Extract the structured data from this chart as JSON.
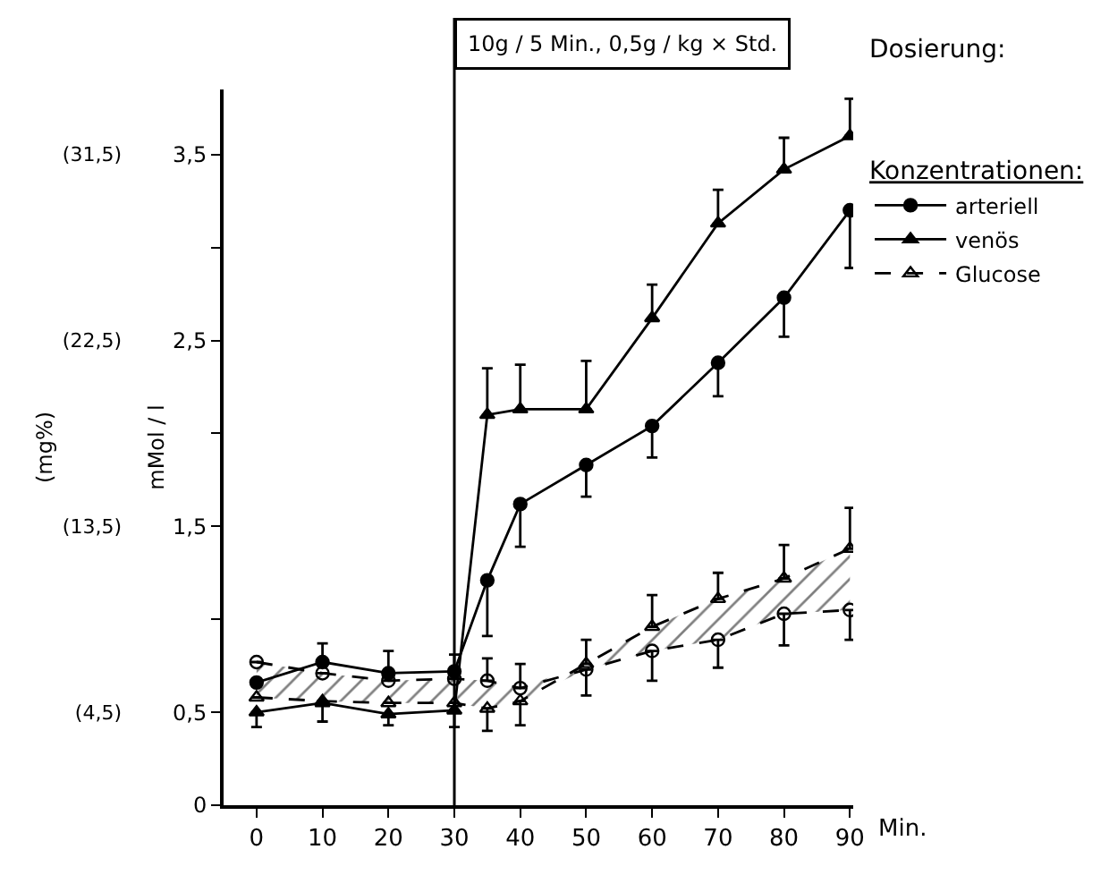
{
  "chart_data": {
    "type": "line",
    "ylabel": "mMol / l",
    "y2label": "(mg%)",
    "xlabel": "Min.",
    "legend_title": "Konzentrationen:",
    "legend": "right",
    "x": [
      0,
      10,
      20,
      30,
      35,
      40,
      50,
      60,
      70,
      80,
      90
    ],
    "xlim": [
      -5,
      90.5
    ],
    "xticks": [
      0,
      10,
      20,
      30,
      40,
      50,
      60,
      70,
      80,
      90
    ],
    "ylim": [
      0,
      3.85
    ],
    "yticks": [
      0,
      {
        "value": 0.5,
        "label": "0,5"
      },
      {
        "value": 1.0,
        "label": null
      },
      {
        "value": 1.5,
        "label": "1,5"
      },
      {
        "value": 2.0,
        "label": null
      },
      {
        "value": 2.5,
        "label": "2,5"
      },
      {
        "value": 3.0,
        "label": null
      },
      {
        "value": 3.5,
        "label": "3,5"
      }
    ],
    "y2lim": [
      0,
      34.65
    ],
    "y2ticks": [
      {
        "value": 4.5,
        "label": "(4,5)"
      },
      {
        "value": 13.5,
        "label": "(13,5)"
      },
      {
        "value": 22.5,
        "label": "(22,5)"
      },
      {
        "value": 31.5,
        "label": "(31,5)"
      }
    ],
    "series": [
      {
        "name": "arteriell",
        "color": "#000000",
        "marker": "circle",
        "line_style": "solid",
        "values": [
          0.66,
          0.77,
          0.71,
          0.72,
          1.21,
          1.62,
          1.83,
          2.04,
          2.38,
          2.73,
          3.2
        ],
        "errors": [
          null,
          [
            0.77,
            0.87
          ],
          [
            0.71,
            0.83
          ],
          [
            0.72,
            0.81
          ],
          [
            0.91,
            1.21
          ],
          [
            1.39,
            1.62
          ],
          [
            1.66,
            1.83
          ],
          [
            1.87,
            2.04
          ],
          [
            2.2,
            2.38
          ],
          [
            2.52,
            2.73
          ],
          [
            2.89,
            3.2
          ]
        ]
      },
      {
        "name": "venös",
        "color": "#000000",
        "marker": "triangle",
        "line_style": "solid",
        "values": [
          0.5,
          0.55,
          0.49,
          0.51,
          2.1,
          2.13,
          2.13,
          2.62,
          3.13,
          3.42,
          3.6
        ],
        "errors": [
          [
            0.42,
            0.5
          ],
          [
            0.45,
            0.55
          ],
          [
            0.43,
            0.49
          ],
          [
            0.42,
            0.51
          ],
          [
            2.1,
            2.35
          ],
          [
            2.13,
            2.37
          ],
          [
            2.13,
            2.39
          ],
          [
            2.62,
            2.8
          ],
          [
            3.13,
            3.31
          ],
          [
            3.42,
            3.59
          ],
          [
            3.6,
            3.8
          ]
        ]
      },
      {
        "color": "#000000",
        "marker": "circle",
        "line_style": "dashed",
        "values": [
          0.77,
          0.71,
          0.67,
          0.68,
          0.67,
          0.63,
          0.73,
          0.83,
          0.89,
          1.03,
          1.05
        ],
        "errors": [
          null,
          null,
          null,
          null,
          [
            0.67,
            0.79
          ],
          [
            0.63,
            0.76
          ],
          [
            0.59,
            0.73
          ],
          [
            0.67,
            0.83
          ],
          [
            0.74,
            0.89
          ],
          [
            0.86,
            1.03
          ],
          [
            0.89,
            1.05
          ]
        ]
      },
      {
        "name": "Glucose",
        "color": "#000000",
        "marker": "triangle",
        "line_style": "dashed",
        "values": [
          0.58,
          0.56,
          0.55,
          0.55,
          0.52,
          0.56,
          0.76,
          0.96,
          1.11,
          1.22,
          1.38
        ],
        "lower": [
          0.58,
          0.56,
          0.55,
          0.55,
          0.52,
          0.56,
          0.73,
          0.83,
          0.89,
          1.03,
          1.05
        ],
        "upper": [
          0.77,
          0.71,
          0.67,
          0.68,
          0.67,
          0.63,
          0.76,
          0.96,
          1.11,
          1.22,
          1.38
        ],
        "errors": [
          null,
          null,
          null,
          null,
          [
            0.4,
            0.52
          ],
          [
            0.43,
            0.56
          ],
          [
            0.76,
            0.89
          ],
          [
            0.96,
            1.13
          ],
          [
            1.11,
            1.25
          ],
          [
            1.22,
            1.4
          ],
          [
            1.38,
            1.6
          ]
        ]
      }
    ],
    "ref_lines": [
      {
        "axis": "x",
        "value": 30,
        "label": "10g / 5 Min., 0,5g / kg × Std.",
        "color": "#000000",
        "line_style": "solid"
      }
    ],
    "annotations": [
      "Dosierung:"
    ]
  }
}
